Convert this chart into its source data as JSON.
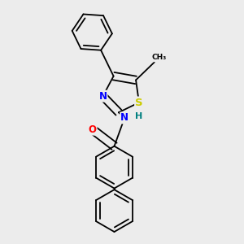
{
  "bg_color": "#ececec",
  "bond_color": "#000000",
  "bond_width": 1.3,
  "atoms": {
    "S": {
      "color": "#cccc00"
    },
    "N": {
      "color": "#0000ff"
    },
    "O": {
      "color": "#ff0000"
    },
    "H": {
      "color": "#008080"
    }
  },
  "font_size": 8.5
}
